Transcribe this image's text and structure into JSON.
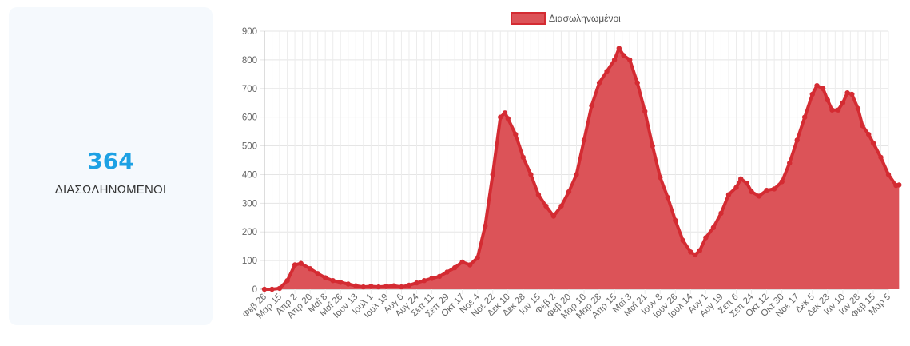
{
  "stat": {
    "value": "364",
    "label": "ΔΙΑΣΩΛΗΝΩΜΕΝΟΙ"
  },
  "chart_data": {
    "type": "area",
    "legend": {
      "label": "Διασωληνωμένοι",
      "position": "top-center"
    },
    "title": "",
    "xlabel": "",
    "ylabel": "",
    "ylim": [
      0,
      900
    ],
    "yticks": [
      0,
      100,
      200,
      300,
      400,
      500,
      600,
      700,
      800,
      900
    ],
    "grid": true,
    "colors": {
      "fill": "#dc5358",
      "line": "#d42b32"
    },
    "xtick_labels": [
      "Φεβ 26",
      "Μαρ 15",
      "Απρ 2",
      "Απρ 20",
      "Μαΐ 8",
      "Μαΐ 26",
      "Ιουν 13",
      "Ιουλ 1",
      "Ιουλ 19",
      "Αυγ 6",
      "Αυγ 24",
      "Σεπ 11",
      "Σεπ 29",
      "Οκτ 17",
      "Νοε 4",
      "Νοε 22",
      "Δεκ 10",
      "Δεκ 28",
      "Ιαν 15",
      "Φεβ 2",
      "Φεβ 20",
      "Μαρ 10",
      "Μαρ 28",
      "Απρ 15",
      "Μαΐ 3",
      "Μαΐ 21",
      "Ιουν 8",
      "Ιουν 26",
      "Ιουλ 14",
      "Αυγ 1",
      "Αυγ 19",
      "Σεπ 6",
      "Σεπ 24",
      "Οκτ 12",
      "Οκτ 30",
      "Νοε 17",
      "Δεκ 5",
      "Δεκ 23",
      "Ιαν 10",
      "Ιαν 28",
      "Φεβ 15",
      "Μαρ 5"
    ],
    "series": [
      {
        "name": "Διασωληνωμένοι",
        "points": [
          [
            0,
            0
          ],
          [
            0.5,
            0
          ],
          [
            1,
            3
          ],
          [
            1.5,
            30
          ],
          [
            2,
            85
          ],
          [
            2.4,
            90
          ],
          [
            3,
            72
          ],
          [
            3.5,
            55
          ],
          [
            4,
            40
          ],
          [
            4.5,
            30
          ],
          [
            5,
            24
          ],
          [
            5.5,
            18
          ],
          [
            6,
            12
          ],
          [
            6.5,
            8
          ],
          [
            7,
            10
          ],
          [
            7.5,
            8
          ],
          [
            8,
            10
          ],
          [
            8.5,
            12
          ],
          [
            9,
            8
          ],
          [
            9.5,
            14
          ],
          [
            10,
            22
          ],
          [
            10.5,
            30
          ],
          [
            11,
            38
          ],
          [
            11.5,
            45
          ],
          [
            12,
            60
          ],
          [
            12.5,
            75
          ],
          [
            13,
            95
          ],
          [
            13.5,
            85
          ],
          [
            14,
            110
          ],
          [
            14.5,
            220
          ],
          [
            15,
            400
          ],
          [
            15.5,
            600
          ],
          [
            15.8,
            615
          ],
          [
            16,
            595
          ],
          [
            16.5,
            540
          ],
          [
            17,
            460
          ],
          [
            17.5,
            400
          ],
          [
            18,
            330
          ],
          [
            18.5,
            290
          ],
          [
            19,
            255
          ],
          [
            19.5,
            290
          ],
          [
            20,
            340
          ],
          [
            20.5,
            400
          ],
          [
            21,
            520
          ],
          [
            21.5,
            640
          ],
          [
            22,
            720
          ],
          [
            22.5,
            760
          ],
          [
            23,
            800
          ],
          [
            23.3,
            840
          ],
          [
            23.6,
            815
          ],
          [
            24,
            800
          ],
          [
            24.5,
            720
          ],
          [
            25,
            620
          ],
          [
            25.5,
            500
          ],
          [
            26,
            390
          ],
          [
            26.5,
            320
          ],
          [
            27,
            240
          ],
          [
            27.5,
            170
          ],
          [
            28,
            130
          ],
          [
            28.3,
            120
          ],
          [
            28.6,
            135
          ],
          [
            29,
            180
          ],
          [
            29.5,
            215
          ],
          [
            30,
            265
          ],
          [
            30.5,
            330
          ],
          [
            31,
            355
          ],
          [
            31.3,
            385
          ],
          [
            31.7,
            370
          ],
          [
            32,
            340
          ],
          [
            32.5,
            325
          ],
          [
            33,
            345
          ],
          [
            33.5,
            350
          ],
          [
            34,
            375
          ],
          [
            34.5,
            440
          ],
          [
            35,
            520
          ],
          [
            35.5,
            600
          ],
          [
            36,
            680
          ],
          [
            36.3,
            710
          ],
          [
            36.7,
            700
          ],
          [
            37,
            660
          ],
          [
            37.3,
            625
          ],
          [
            37.7,
            625
          ],
          [
            38,
            650
          ],
          [
            38.3,
            685
          ],
          [
            38.6,
            680
          ],
          [
            39,
            630
          ],
          [
            39.3,
            570
          ],
          [
            39.7,
            540
          ],
          [
            40,
            510
          ],
          [
            40.5,
            460
          ],
          [
            41,
            400
          ],
          [
            41.5,
            362
          ],
          [
            41.7,
            364
          ]
        ]
      }
    ]
  }
}
